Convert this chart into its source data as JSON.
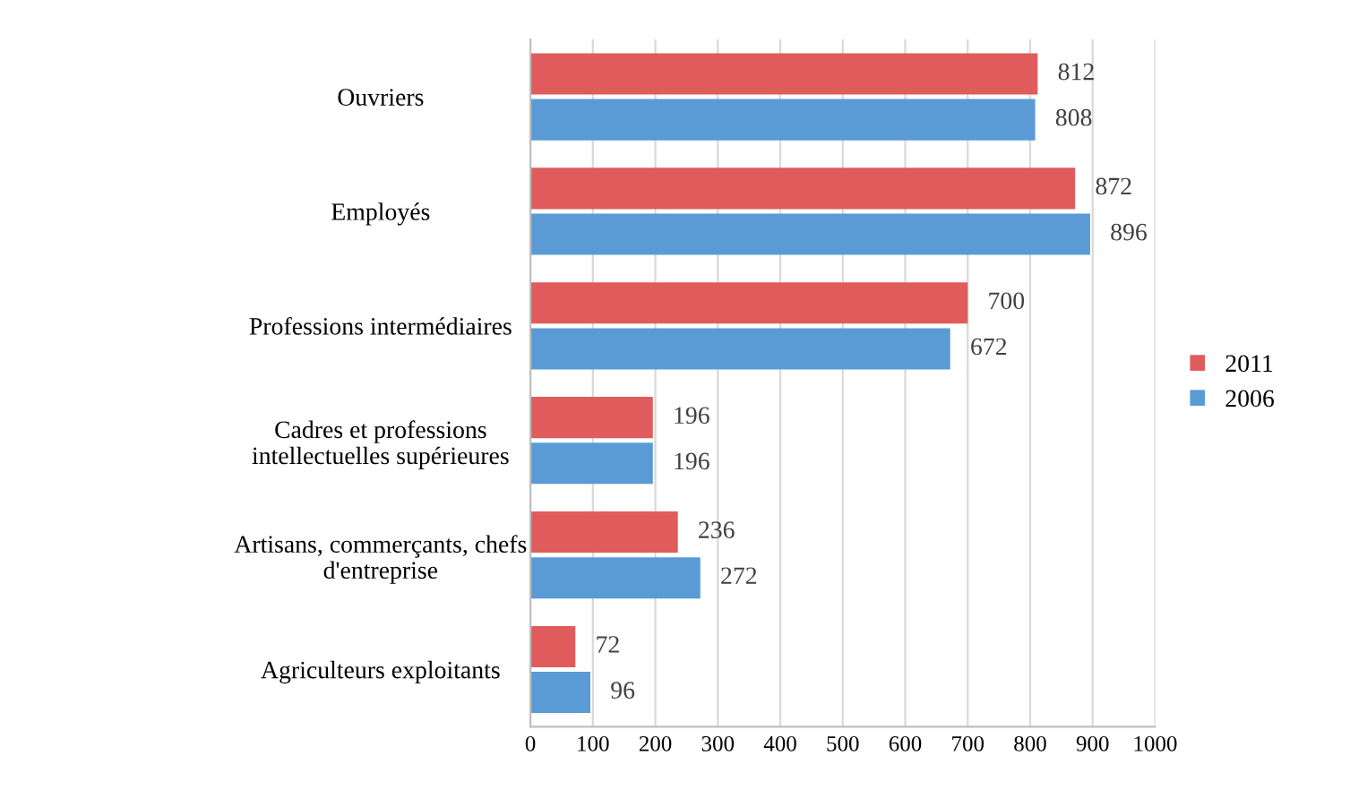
{
  "chart_data": {
    "type": "bar",
    "orientation": "horizontal",
    "categories": [
      "Ouvriers",
      "Employés",
      "Professions intermédiaires",
      "Cadres et professions intellectuelles supérieures",
      "Artisans, commerçants, chefs d'entreprise",
      "Agriculteurs exploitants"
    ],
    "series": [
      {
        "name": "2011",
        "color": "#e05c5c",
        "values": [
          812,
          872,
          700,
          196,
          236,
          72
        ]
      },
      {
        "name": "2006",
        "color": "#5b9bd5",
        "values": [
          808,
          896,
          672,
          196,
          272,
          96
        ]
      }
    ],
    "xlim": [
      0,
      1000
    ],
    "xticks": [
      0,
      100,
      200,
      300,
      400,
      500,
      600,
      700,
      800,
      900,
      1000
    ],
    "grid": "x",
    "legend": "right",
    "data_labels": true
  }
}
